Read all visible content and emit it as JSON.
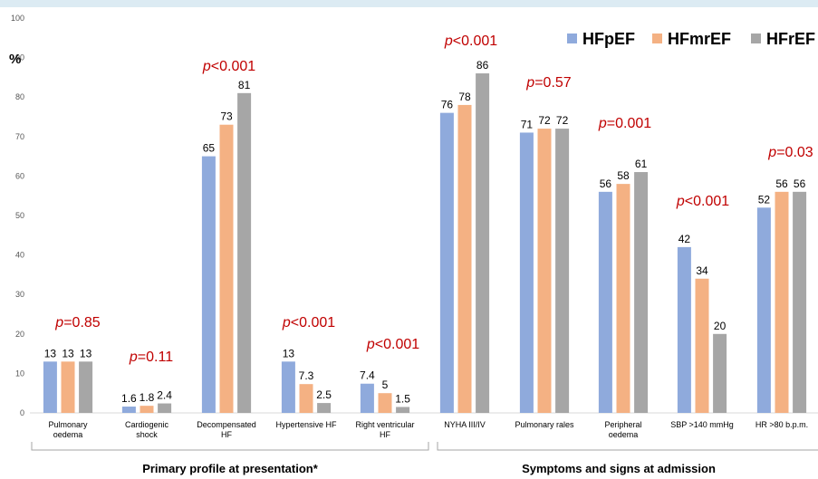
{
  "chart_data": {
    "type": "bar",
    "ylabel": "%",
    "ylim": [
      0,
      100
    ],
    "yticks": [
      0,
      10,
      20,
      30,
      40,
      50,
      60,
      70,
      80,
      90,
      100
    ],
    "grid": false,
    "legend_position": "top-right",
    "categories": [
      [
        "Pulmonary",
        "oedema"
      ],
      [
        "Cardiogenic",
        "shock"
      ],
      [
        "Decompensated",
        "HF"
      ],
      [
        "Hypertensive HF"
      ],
      [
        "Right ventricular",
        "HF"
      ],
      [
        "NYHA III/IV"
      ],
      [
        "Pulmonary rales"
      ],
      [
        "Peripheral",
        "oedema"
      ],
      [
        "SBP >140 mmHg"
      ],
      [
        "HR >80 b.p.m."
      ]
    ],
    "series": [
      {
        "name": "HFpEF",
        "color": "#8faadc",
        "values": [
          13,
          1.6,
          65,
          13,
          7.4,
          76,
          71,
          56,
          42,
          52
        ]
      },
      {
        "name": "HFmrEF",
        "color": "#f4b183",
        "values": [
          13,
          1.8,
          73,
          7.3,
          5,
          78,
          72,
          58,
          34,
          56
        ]
      },
      {
        "name": "HFrEF",
        "color": "#a6a6a6",
        "values": [
          13,
          2.4,
          81,
          2.5,
          1.5,
          86,
          72,
          61,
          20,
          56
        ]
      }
    ],
    "p_values": [
      {
        "prefix": "p",
        "rest": "=0.85"
      },
      {
        "prefix": "p",
        "rest": "=0.11"
      },
      {
        "prefix": "p",
        "rest": "<0.001"
      },
      {
        "prefix": "p",
        "rest": "<0.001"
      },
      {
        "prefix": "p",
        "rest": "<0.001"
      },
      {
        "prefix": "p",
        "rest": "<0.001"
      },
      {
        "prefix": "p",
        "rest": "=0.57"
      },
      {
        "prefix": "p",
        "rest": "=0.001"
      },
      {
        "prefix": "p",
        "rest": "<0.001"
      },
      {
        "prefix": "p",
        "rest": "=0.03"
      }
    ],
    "groups": [
      {
        "label": "Primary profile at presentation*",
        "from": 0,
        "to": 4
      },
      {
        "label": "Symptoms and signs at admission",
        "from": 5,
        "to": 9
      }
    ]
  }
}
